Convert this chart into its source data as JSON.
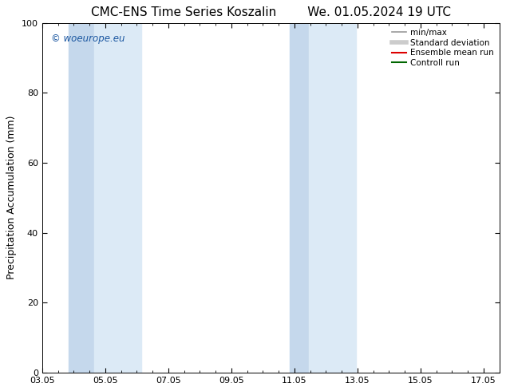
{
  "title_left": "CMC-ENS Time Series Koszalin",
  "title_right": "We. 01.05.2024 19 UTC",
  "ylabel": "Precipitation Accumulation (mm)",
  "ylim": [
    0,
    100
  ],
  "yticks": [
    0,
    20,
    40,
    60,
    80,
    100
  ],
  "xtick_labels": [
    "03.05",
    "05.05",
    "07.05",
    "09.05",
    "11.05",
    "13.05",
    "15.05",
    "17.05"
  ],
  "xtick_positions": [
    0,
    2,
    4,
    6,
    8,
    10,
    12,
    14
  ],
  "xlim": [
    0,
    14
  ],
  "shaded_bands": [
    {
      "x_start": 0.85,
      "x_end": 1.65,
      "alpha": 0.55
    },
    {
      "x_start": 1.65,
      "x_end": 3.15,
      "alpha": 0.3
    },
    {
      "x_start": 7.85,
      "x_end": 8.35,
      "alpha": 0.55
    },
    {
      "x_start": 8.35,
      "x_end": 9.85,
      "alpha": 0.3
    }
  ],
  "shaded_color": "#c8ddf0",
  "background_color": "#ffffff",
  "watermark_text": "© woeurope.eu",
  "watermark_color": "#1a56a0",
  "legend_entries": [
    {
      "label": "min/max",
      "color": "#999999",
      "linewidth": 1.2,
      "linestyle": "-"
    },
    {
      "label": "Standard deviation",
      "color": "#cccccc",
      "linewidth": 4.0,
      "linestyle": "-"
    },
    {
      "label": "Ensemble mean run",
      "color": "#dd0000",
      "linewidth": 1.5,
      "linestyle": "-"
    },
    {
      "label": "Controll run",
      "color": "#006600",
      "linewidth": 1.5,
      "linestyle": "-"
    }
  ],
  "title_fontsize": 11,
  "axis_fontsize": 9,
  "tick_fontsize": 8,
  "legend_fontsize": 7.5,
  "figsize": [
    6.34,
    4.9
  ],
  "dpi": 100
}
